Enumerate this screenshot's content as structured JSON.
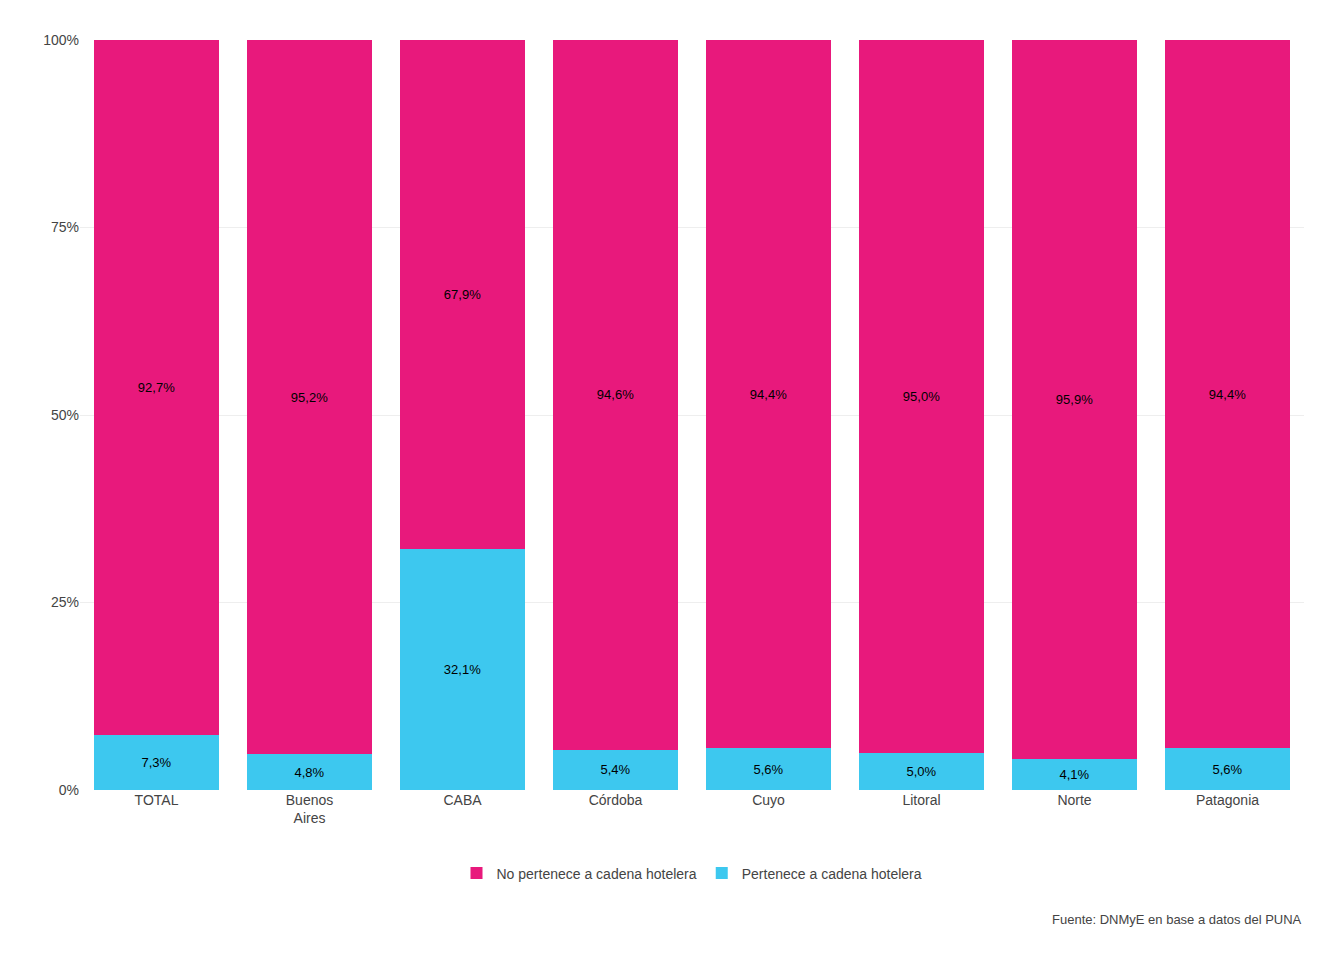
{
  "chart_data": {
    "type": "bar",
    "stacked": true,
    "categories": [
      "TOTAL",
      "Buenos\nAires",
      "CABA",
      "Córdoba",
      "Cuyo",
      "Litoral",
      "Norte",
      "Patagonia"
    ],
    "series": [
      {
        "name": "Pertenece a cadena hotelera",
        "color": "#3DC8EF",
        "values": [
          7.3,
          4.8,
          32.1,
          5.4,
          5.6,
          5.0,
          4.1,
          5.6
        ],
        "value_labels": [
          "7,3%",
          "4,8%",
          "32,1%",
          "5,4%",
          "5,6%",
          "5,0%",
          "4,1%",
          "5,6%"
        ]
      },
      {
        "name": "No pertenece a cadena hotelera",
        "color": "#E8197C",
        "values": [
          92.7,
          95.2,
          67.9,
          94.6,
          94.4,
          95.0,
          95.9,
          94.4
        ],
        "value_labels": [
          "92,7%",
          "95,2%",
          "67,9%",
          "94,6%",
          "94,4%",
          "95,0%",
          "95,9%",
          "94,4%"
        ]
      }
    ],
    "ylim": [
      0,
      100
    ],
    "yticks": [
      {
        "value": 0,
        "label": "0%"
      },
      {
        "value": 25,
        "label": "25%"
      },
      {
        "value": 50,
        "label": "50%"
      },
      {
        "value": 75,
        "label": "75%"
      },
      {
        "value": 100,
        "label": "100%"
      }
    ],
    "grid": true,
    "data_labels": true,
    "legend": "bottom",
    "annotations": [
      "Fuente: DNMyE en base a datos del PUNA"
    ]
  }
}
